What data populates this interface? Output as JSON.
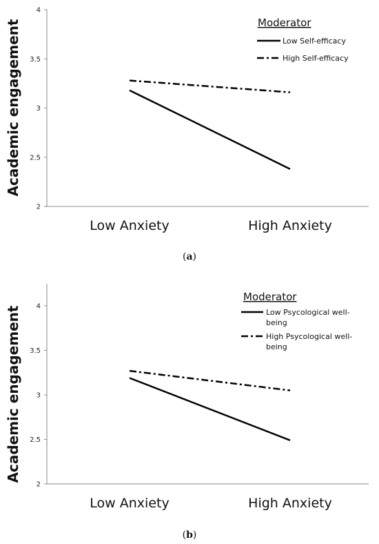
{
  "chart_data": [
    {
      "type": "line",
      "panel_label": "a",
      "ylabel": "Academic engagement",
      "categories": [
        "Low Anxiety",
        "High Anxiety"
      ],
      "ylim": [
        2,
        4
      ],
      "yticks": [
        "2",
        "2.5",
        "3",
        "3.5",
        "4"
      ],
      "legend": {
        "title": "Moderator",
        "placement": "top-right"
      },
      "series": [
        {
          "name": "Low Self-efficacy",
          "style": "solid",
          "values": [
            3.18,
            2.38
          ]
        },
        {
          "name": "High Self-efficacy",
          "style": "dash-dot",
          "values": [
            3.28,
            3.16
          ]
        }
      ]
    },
    {
      "type": "line",
      "panel_label": "b",
      "ylabel": "Academic engagement",
      "categories": [
        "Low Anxiety",
        "High Anxiety"
      ],
      "ylim": [
        2,
        4
      ],
      "yticks": [
        "2",
        "2.5",
        "3",
        "3.5",
        "4"
      ],
      "legend": {
        "title": "Moderator",
        "placement": "top-right"
      },
      "series": [
        {
          "name": "Low Psycological well-being",
          "style": "solid",
          "values": [
            3.19,
            2.49
          ]
        },
        {
          "name": "High Psycological well-being",
          "style": "dash-dot",
          "values": [
            3.27,
            3.05
          ]
        }
      ]
    }
  ]
}
